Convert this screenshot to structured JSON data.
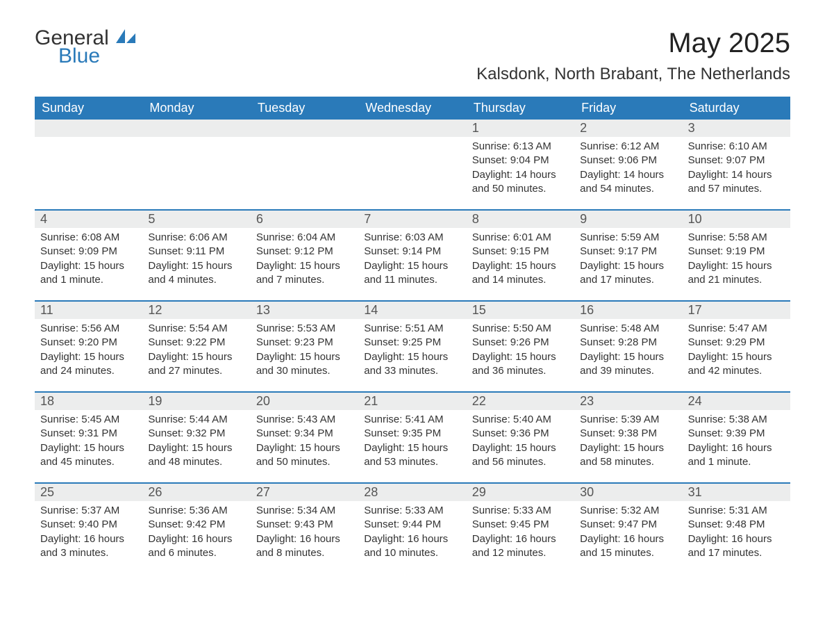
{
  "brand": {
    "name_a": "General",
    "name_b": "Blue"
  },
  "colors": {
    "brand_blue": "#2a7ab9",
    "header_bg": "#2a7ab9",
    "header_text": "#ffffff",
    "daynum_bg": "#eceded",
    "text": "#333333",
    "rule": "#2a7ab9",
    "page_bg": "#ffffff"
  },
  "typography": {
    "title_fontsize": 40,
    "location_fontsize": 24,
    "dow_fontsize": 18,
    "body_fontsize": 15
  },
  "title": "May 2025",
  "location": "Kalsdonk, North Brabant, The Netherlands",
  "dow": [
    "Sunday",
    "Monday",
    "Tuesday",
    "Wednesday",
    "Thursday",
    "Friday",
    "Saturday"
  ],
  "weeks": [
    [
      {
        "n": "",
        "sr": "",
        "ss": "",
        "dl": ""
      },
      {
        "n": "",
        "sr": "",
        "ss": "",
        "dl": ""
      },
      {
        "n": "",
        "sr": "",
        "ss": "",
        "dl": ""
      },
      {
        "n": "",
        "sr": "",
        "ss": "",
        "dl": ""
      },
      {
        "n": "1",
        "sr": "Sunrise: 6:13 AM",
        "ss": "Sunset: 9:04 PM",
        "dl": "Daylight: 14 hours and 50 minutes."
      },
      {
        "n": "2",
        "sr": "Sunrise: 6:12 AM",
        "ss": "Sunset: 9:06 PM",
        "dl": "Daylight: 14 hours and 54 minutes."
      },
      {
        "n": "3",
        "sr": "Sunrise: 6:10 AM",
        "ss": "Sunset: 9:07 PM",
        "dl": "Daylight: 14 hours and 57 minutes."
      }
    ],
    [
      {
        "n": "4",
        "sr": "Sunrise: 6:08 AM",
        "ss": "Sunset: 9:09 PM",
        "dl": "Daylight: 15 hours and 1 minute."
      },
      {
        "n": "5",
        "sr": "Sunrise: 6:06 AM",
        "ss": "Sunset: 9:11 PM",
        "dl": "Daylight: 15 hours and 4 minutes."
      },
      {
        "n": "6",
        "sr": "Sunrise: 6:04 AM",
        "ss": "Sunset: 9:12 PM",
        "dl": "Daylight: 15 hours and 7 minutes."
      },
      {
        "n": "7",
        "sr": "Sunrise: 6:03 AM",
        "ss": "Sunset: 9:14 PM",
        "dl": "Daylight: 15 hours and 11 minutes."
      },
      {
        "n": "8",
        "sr": "Sunrise: 6:01 AM",
        "ss": "Sunset: 9:15 PM",
        "dl": "Daylight: 15 hours and 14 minutes."
      },
      {
        "n": "9",
        "sr": "Sunrise: 5:59 AM",
        "ss": "Sunset: 9:17 PM",
        "dl": "Daylight: 15 hours and 17 minutes."
      },
      {
        "n": "10",
        "sr": "Sunrise: 5:58 AM",
        "ss": "Sunset: 9:19 PM",
        "dl": "Daylight: 15 hours and 21 minutes."
      }
    ],
    [
      {
        "n": "11",
        "sr": "Sunrise: 5:56 AM",
        "ss": "Sunset: 9:20 PM",
        "dl": "Daylight: 15 hours and 24 minutes."
      },
      {
        "n": "12",
        "sr": "Sunrise: 5:54 AM",
        "ss": "Sunset: 9:22 PM",
        "dl": "Daylight: 15 hours and 27 minutes."
      },
      {
        "n": "13",
        "sr": "Sunrise: 5:53 AM",
        "ss": "Sunset: 9:23 PM",
        "dl": "Daylight: 15 hours and 30 minutes."
      },
      {
        "n": "14",
        "sr": "Sunrise: 5:51 AM",
        "ss": "Sunset: 9:25 PM",
        "dl": "Daylight: 15 hours and 33 minutes."
      },
      {
        "n": "15",
        "sr": "Sunrise: 5:50 AM",
        "ss": "Sunset: 9:26 PM",
        "dl": "Daylight: 15 hours and 36 minutes."
      },
      {
        "n": "16",
        "sr": "Sunrise: 5:48 AM",
        "ss": "Sunset: 9:28 PM",
        "dl": "Daylight: 15 hours and 39 minutes."
      },
      {
        "n": "17",
        "sr": "Sunrise: 5:47 AM",
        "ss": "Sunset: 9:29 PM",
        "dl": "Daylight: 15 hours and 42 minutes."
      }
    ],
    [
      {
        "n": "18",
        "sr": "Sunrise: 5:45 AM",
        "ss": "Sunset: 9:31 PM",
        "dl": "Daylight: 15 hours and 45 minutes."
      },
      {
        "n": "19",
        "sr": "Sunrise: 5:44 AM",
        "ss": "Sunset: 9:32 PM",
        "dl": "Daylight: 15 hours and 48 minutes."
      },
      {
        "n": "20",
        "sr": "Sunrise: 5:43 AM",
        "ss": "Sunset: 9:34 PM",
        "dl": "Daylight: 15 hours and 50 minutes."
      },
      {
        "n": "21",
        "sr": "Sunrise: 5:41 AM",
        "ss": "Sunset: 9:35 PM",
        "dl": "Daylight: 15 hours and 53 minutes."
      },
      {
        "n": "22",
        "sr": "Sunrise: 5:40 AM",
        "ss": "Sunset: 9:36 PM",
        "dl": "Daylight: 15 hours and 56 minutes."
      },
      {
        "n": "23",
        "sr": "Sunrise: 5:39 AM",
        "ss": "Sunset: 9:38 PM",
        "dl": "Daylight: 15 hours and 58 minutes."
      },
      {
        "n": "24",
        "sr": "Sunrise: 5:38 AM",
        "ss": "Sunset: 9:39 PM",
        "dl": "Daylight: 16 hours and 1 minute."
      }
    ],
    [
      {
        "n": "25",
        "sr": "Sunrise: 5:37 AM",
        "ss": "Sunset: 9:40 PM",
        "dl": "Daylight: 16 hours and 3 minutes."
      },
      {
        "n": "26",
        "sr": "Sunrise: 5:36 AM",
        "ss": "Sunset: 9:42 PM",
        "dl": "Daylight: 16 hours and 6 minutes."
      },
      {
        "n": "27",
        "sr": "Sunrise: 5:34 AM",
        "ss": "Sunset: 9:43 PM",
        "dl": "Daylight: 16 hours and 8 minutes."
      },
      {
        "n": "28",
        "sr": "Sunrise: 5:33 AM",
        "ss": "Sunset: 9:44 PM",
        "dl": "Daylight: 16 hours and 10 minutes."
      },
      {
        "n": "29",
        "sr": "Sunrise: 5:33 AM",
        "ss": "Sunset: 9:45 PM",
        "dl": "Daylight: 16 hours and 12 minutes."
      },
      {
        "n": "30",
        "sr": "Sunrise: 5:32 AM",
        "ss": "Sunset: 9:47 PM",
        "dl": "Daylight: 16 hours and 15 minutes."
      },
      {
        "n": "31",
        "sr": "Sunrise: 5:31 AM",
        "ss": "Sunset: 9:48 PM",
        "dl": "Daylight: 16 hours and 17 minutes."
      }
    ]
  ]
}
